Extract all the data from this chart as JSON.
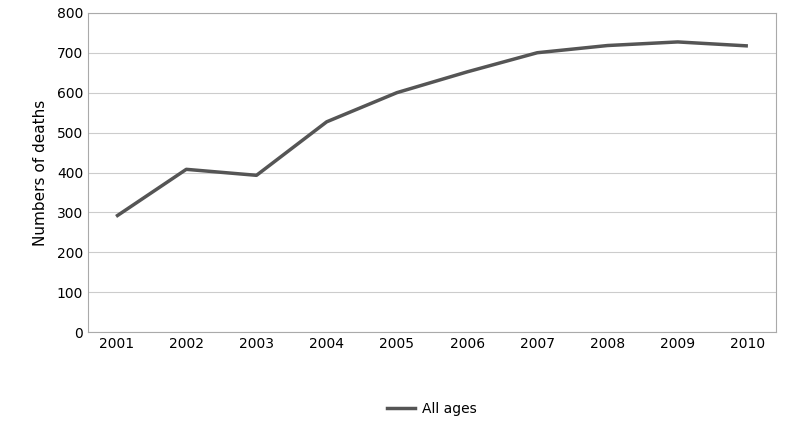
{
  "years": [
    2001,
    2002,
    2003,
    2004,
    2005,
    2006,
    2007,
    2008,
    2009,
    2010
  ],
  "values": [
    290,
    408,
    393,
    527,
    600,
    652,
    700,
    718,
    727,
    717
  ],
  "line_color": "#555555",
  "line_width": 2.5,
  "ylabel": "Numbers of deaths",
  "ylim": [
    0,
    800
  ],
  "yticks": [
    0,
    100,
    200,
    300,
    400,
    500,
    600,
    700,
    800
  ],
  "grid_color": "#cccccc",
  "background_color": "#ffffff",
  "legend_label": "All ages",
  "xlim_left": 2000.6,
  "xlim_right": 2010.4
}
